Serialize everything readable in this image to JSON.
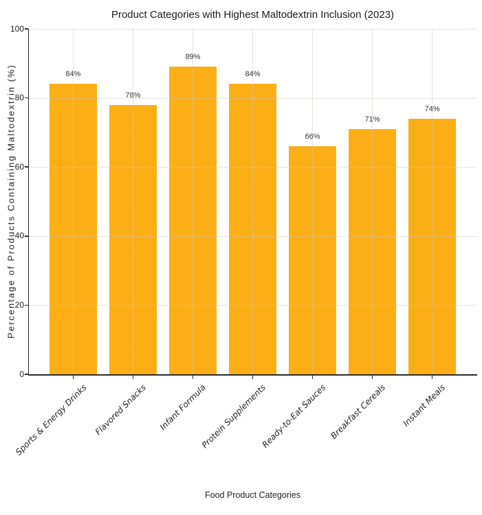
{
  "chart_data": {
    "type": "bar",
    "title": "Product Categories with Highest Maltodextrin Inclusion (2023)",
    "xlabel": "Food Product Categories",
    "ylabel": "Percentage of Products Containing Maltodextrin (%)",
    "categories": [
      "Sports & Energy Drinks",
      "Flavored Snacks",
      "Infant Formula",
      "Protein Supplements",
      "Ready-to-Eat Sauces",
      "Breakfast Cereals",
      "Instant Meals"
    ],
    "values": [
      84,
      78,
      89,
      84,
      66,
      71,
      74
    ],
    "value_labels": [
      "84%",
      "78%",
      "89%",
      "84%",
      "66%",
      "71%",
      "74%"
    ],
    "ylim": [
      0,
      100
    ],
    "yticks": [
      0,
      20,
      40,
      60,
      80,
      100
    ],
    "bar_color": "#FCAE16",
    "grid_color": "#cfc8c0",
    "grid_style": "dotted",
    "grid_axes": "both",
    "spine_color": "#2b2b2b",
    "legend": "none"
  }
}
